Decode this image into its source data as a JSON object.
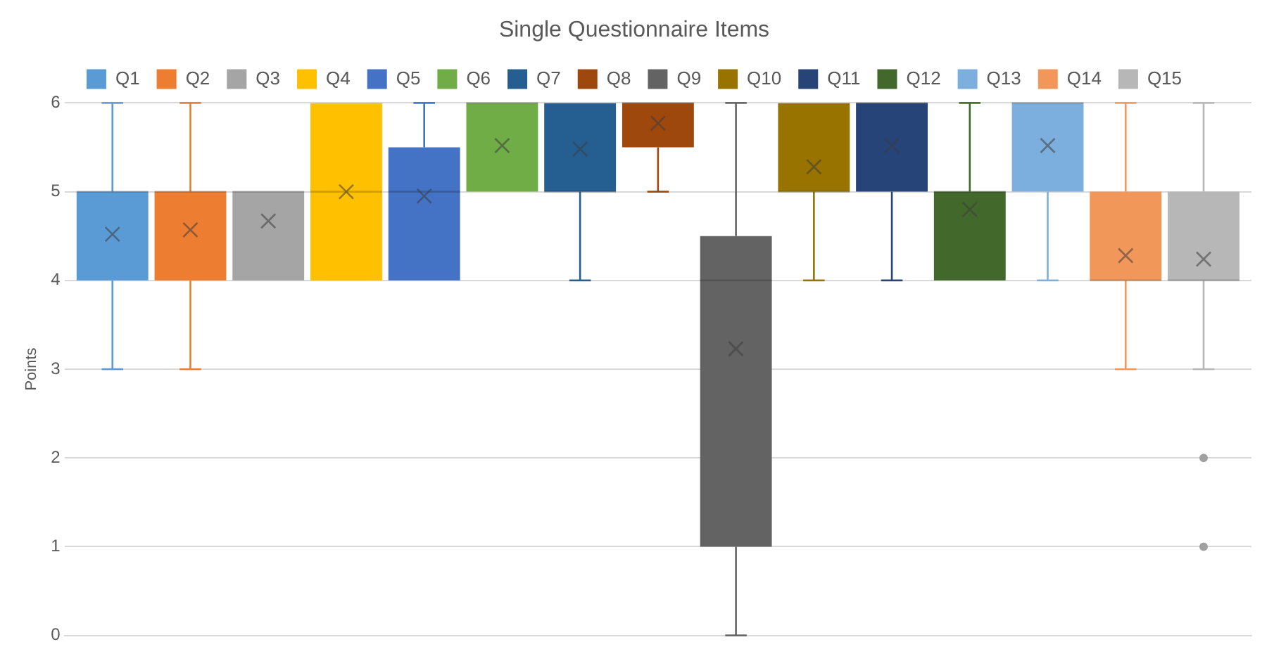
{
  "chart_data": {
    "type": "box",
    "title": "Single Questionnaire Items",
    "ylabel": "Points",
    "categories": [
      null
    ],
    "ylim": [
      0,
      6
    ],
    "yticks": [
      0,
      1,
      2,
      3,
      4,
      5,
      6
    ],
    "grid": "y",
    "legend": "top",
    "series": [
      {
        "name": "Q1",
        "color": "#5b9bd5",
        "boxes": [
          {
            "low": 3,
            "q1": 4,
            "median": 5,
            "q3": 5,
            "high": 6,
            "mean": 4.52
          }
        ]
      },
      {
        "name": "Q2",
        "color": "#ed7d31",
        "boxes": [
          {
            "low": 3,
            "q1": 4,
            "median": 5,
            "q3": 5,
            "high": 6,
            "mean": 4.57
          }
        ]
      },
      {
        "name": "Q3",
        "color": "#a5a5a5",
        "boxes": [
          {
            "low": 4,
            "q1": 4,
            "median": 5,
            "q3": 5,
            "high": 5,
            "mean": 4.67
          }
        ]
      },
      {
        "name": "Q4",
        "color": "#ffc000",
        "boxes": [
          {
            "low": 4,
            "q1": 4,
            "median": 5,
            "q3": 6,
            "high": 6,
            "mean": 5.0
          }
        ]
      },
      {
        "name": "Q5",
        "color": "#4472c4",
        "boxes": [
          {
            "low": 4,
            "q1": 4,
            "median": 5,
            "q3": 5.5,
            "high": 6,
            "mean": 4.95
          }
        ]
      },
      {
        "name": "Q6",
        "color": "#70ad47",
        "boxes": [
          {
            "low": 5,
            "q1": 5,
            "median": 6,
            "q3": 6,
            "high": 6,
            "mean": 5.52
          }
        ]
      },
      {
        "name": "Q7",
        "color": "#255e91",
        "boxes": [
          {
            "low": 4,
            "q1": 5,
            "median": 5,
            "q3": 6,
            "high": 6,
            "mean": 5.48
          }
        ]
      },
      {
        "name": "Q8",
        "color": "#9e480e",
        "boxes": [
          {
            "low": 5,
            "q1": 5.5,
            "median": 6,
            "q3": 6,
            "high": 6,
            "mean": 5.77
          }
        ]
      },
      {
        "name": "Q9",
        "color": "#636363",
        "boxes": [
          {
            "low": 0,
            "q1": 1,
            "median": 4,
            "q3": 4.5,
            "high": 6,
            "mean": 3.23
          }
        ]
      },
      {
        "name": "Q10",
        "color": "#997300",
        "boxes": [
          {
            "low": 4,
            "q1": 5,
            "median": 5,
            "q3": 6,
            "high": 6,
            "mean": 5.28
          }
        ]
      },
      {
        "name": "Q11",
        "color": "#264478",
        "boxes": [
          {
            "low": 4,
            "q1": 5,
            "median": 6,
            "q3": 6,
            "high": 6,
            "mean": 5.52
          }
        ]
      },
      {
        "name": "Q12",
        "color": "#43682b",
        "boxes": [
          {
            "low": 4,
            "q1": 4,
            "median": 5,
            "q3": 5,
            "high": 6,
            "mean": 4.8
          }
        ]
      },
      {
        "name": "Q13",
        "color": "#7cafdd",
        "boxes": [
          {
            "low": 4,
            "q1": 5,
            "median": 6,
            "q3": 6,
            "high": 6,
            "mean": 5.52
          }
        ]
      },
      {
        "name": "Q14",
        "color": "#f1975a",
        "boxes": [
          {
            "low": 3,
            "q1": 4,
            "median": 4,
            "q3": 5,
            "high": 6,
            "mean": 4.28
          }
        ]
      },
      {
        "name": "Q15",
        "color": "#b7b7b7",
        "boxes": [
          {
            "low": 3,
            "q1": 4,
            "median": 4,
            "q3": 5,
            "high": 6,
            "mean": 4.24,
            "outliers": [
              2,
              1
            ]
          }
        ]
      }
    ]
  }
}
